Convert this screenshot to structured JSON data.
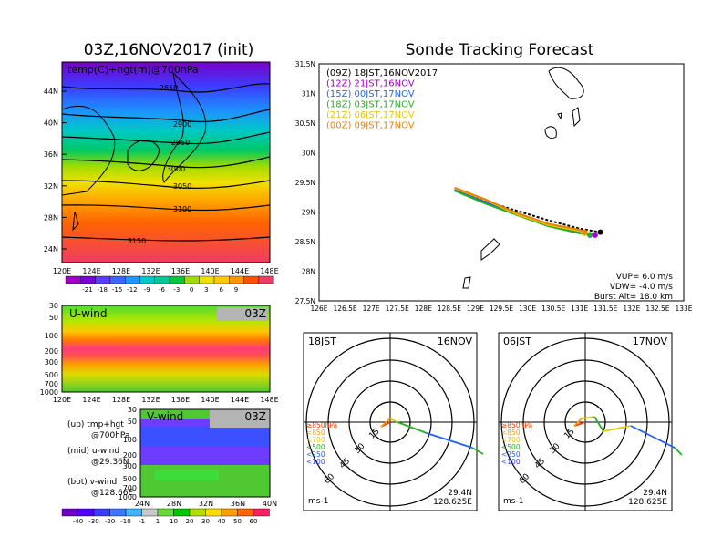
{
  "left": {
    "title": "03Z,16NOV2017 (init)",
    "map_label": "temp(C)+hgt(m)@700hPa",
    "lat_ticks": [
      "44N",
      "40N",
      "36N",
      "32N",
      "28N",
      "24N"
    ],
    "lon_ticks": [
      "120E",
      "124E",
      "128E",
      "132E",
      "136E",
      "140E",
      "144E",
      "148E"
    ],
    "contours": [
      "2850",
      "2900",
      "2950",
      "3000",
      "3050",
      "3100",
      "3150"
    ],
    "temp_colorbar": [
      "-21",
      "-18",
      "-15",
      "-12",
      "-9",
      "-6",
      "-3",
      "0",
      "3",
      "6",
      "9"
    ],
    "uwind": {
      "label": "U-wind",
      "time": "03Z",
      "yticks": [
        "30",
        "50",
        "100",
        "200",
        "300",
        "500",
        "700",
        "1000"
      ],
      "xticks": [
        "120E",
        "124E",
        "128E",
        "132E",
        "136E",
        "140E",
        "144E",
        "148E"
      ]
    },
    "vwind": {
      "label": "V-wind",
      "time": "03Z",
      "yticks": [
        "30",
        "50",
        "100",
        "200",
        "300",
        "500",
        "700",
        "1000"
      ],
      "xticks": [
        "24N",
        "28N",
        "32N",
        "36N",
        "40N"
      ]
    },
    "legend": [
      "(up) tmp+hgt",
      "@700hPa",
      "(mid) u-wind",
      "@29.36N",
      "(bot) v-wind",
      "@128.66E"
    ],
    "wind_colorbar": [
      "-40",
      "-30",
      "-20",
      "-10",
      "-1",
      "1",
      "10",
      "20",
      "30",
      "40",
      "50",
      "60"
    ]
  },
  "right": {
    "title": "Sonde Tracking Forecast",
    "releases": [
      {
        "text": "(09Z)  18JST,16NOV2017",
        "color": "#000000"
      },
      {
        "text": "(12Z)  21JST,16NOV",
        "color": "#a000c8"
      },
      {
        "text": "(15Z)  00JST,17NOV",
        "color": "#2060ff"
      },
      {
        "text": "(18Z)  03JST,17NOV",
        "color": "#20b020"
      },
      {
        "text": "(21Z)  06JST,17NOV",
        "color": "#e6c800"
      },
      {
        "text": "(00Z)  09JST,17NOV",
        "color": "#f08000"
      }
    ],
    "lat_ticks": [
      "31.5N",
      "31N",
      "30.5N",
      "30N",
      "29.5N",
      "29N",
      "28.5N",
      "28N",
      "27.5N"
    ],
    "lon_ticks": [
      "126E",
      "126.5E",
      "127E",
      "127.5E",
      "128E",
      "128.5E",
      "129E",
      "129.5E",
      "130E",
      "130.5E",
      "131E",
      "131.5E",
      "132E",
      "132.5E",
      "133E"
    ],
    "stats": [
      "VUP=  6.0  m/s",
      "VDW= -4.0  m/s",
      "Burst Alt=  18.0  km"
    ],
    "hodos": [
      {
        "left": "18JST",
        "right": "16NOV",
        "rings": [
          "15",
          "30",
          "45",
          "60"
        ],
        "levels": [
          "≥850hPa",
          "<850",
          "<700",
          "<500",
          "<250",
          "<100"
        ],
        "unit": "ms-1",
        "lat": "29.4N",
        "lon": "128.625E"
      },
      {
        "left": "06JST",
        "right": "17NOV",
        "rings": [
          "15",
          "30",
          "45",
          "60"
        ],
        "levels": [
          "≥850hPa",
          "<850",
          "<700",
          "<500",
          "<250",
          "<100"
        ],
        "unit": "ms-1",
        "lat": "29.4N",
        "lon": "128.625E"
      }
    ]
  },
  "chart_data": [
    {
      "type": "line",
      "title": "Sonde Tracking Forecast",
      "xlabel": "",
      "ylabel": "",
      "xlim": [
        126,
        133
      ],
      "ylim": [
        27.5,
        31.5
      ],
      "series": [
        {
          "name": "(09Z)  18JST,16NOV2017",
          "color": "#000000",
          "x": [
            128.6,
            129.2,
            129.8,
            130.4,
            131.0,
            131.4
          ],
          "y": [
            29.38,
            29.18,
            29.02,
            28.86,
            28.72,
            28.66
          ]
        },
        {
          "name": "(12Z)  21JST,16NOV",
          "color": "#a000c8",
          "x": [
            128.6,
            129.2,
            129.8,
            130.4,
            131.0,
            131.3
          ],
          "y": [
            29.37,
            29.16,
            28.98,
            28.8,
            28.66,
            28.61
          ]
        },
        {
          "name": "(15Z)  00JST,17NOV",
          "color": "#2060ff",
          "x": [
            128.6,
            129.2,
            129.8,
            130.4,
            131.0,
            131.2
          ],
          "y": [
            29.37,
            29.16,
            28.97,
            28.78,
            28.65,
            28.61
          ]
        },
        {
          "name": "(18Z)  03JST,17NOV",
          "color": "#20b020",
          "x": [
            128.6,
            129.2,
            129.8,
            130.4,
            131.0,
            131.2
          ],
          "y": [
            29.36,
            29.14,
            28.95,
            28.76,
            28.64,
            28.62
          ]
        },
        {
          "name": "(21Z)  06JST,17NOV",
          "color": "#e6c800",
          "x": [
            128.6,
            129.2,
            129.8,
            130.4,
            131.0,
            131.1
          ],
          "y": [
            29.4,
            29.2,
            28.96,
            28.78,
            28.68,
            28.64
          ]
        },
        {
          "name": "(00Z)  09JST,17NOV",
          "color": "#f08000",
          "x": [
            128.6,
            129.2,
            129.8,
            130.4,
            131.0,
            131.1
          ],
          "y": [
            29.41,
            29.21,
            28.98,
            28.8,
            28.7,
            28.66
          ]
        }
      ]
    }
  ]
}
